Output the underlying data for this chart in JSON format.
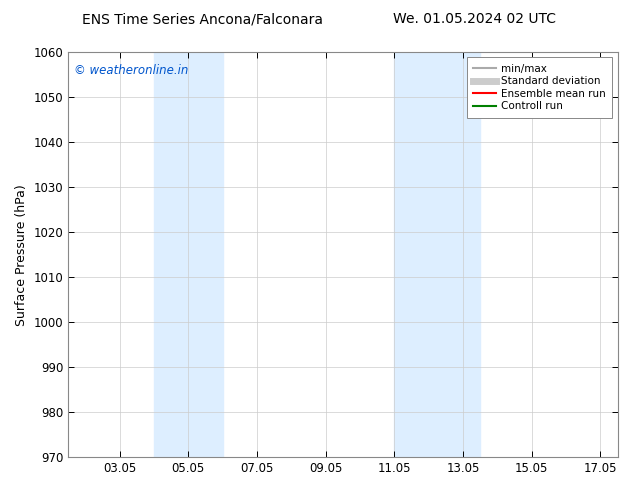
{
  "title_left": "ENS Time Series Ancona/Falconara",
  "title_right": "We. 01.05.2024 02 UTC",
  "ylabel": "Surface Pressure (hPa)",
  "ylim": [
    970,
    1060
  ],
  "yticks": [
    970,
    980,
    990,
    1000,
    1010,
    1020,
    1030,
    1040,
    1050,
    1060
  ],
  "xlim": [
    1.5,
    17.5
  ],
  "xtick_labels": [
    "03.05",
    "05.05",
    "07.05",
    "09.05",
    "11.05",
    "13.05",
    "15.05",
    "17.05"
  ],
  "xtick_positions": [
    3,
    5,
    7,
    9,
    11,
    13,
    15,
    17
  ],
  "shaded_bands": [
    {
      "x_start": 4.0,
      "x_end": 6.0,
      "color": "#ddeeff"
    },
    {
      "x_start": 11.0,
      "x_end": 13.5,
      "color": "#ddeeff"
    }
  ],
  "watermark_text": "© weatheronline.in",
  "watermark_color": "#0055cc",
  "legend_items": [
    {
      "label": "min/max",
      "color": "#aaaaaa",
      "lw": 1.5,
      "ls": "-"
    },
    {
      "label": "Standard deviation",
      "color": "#cccccc",
      "lw": 5,
      "ls": "-"
    },
    {
      "label": "Ensemble mean run",
      "color": "red",
      "lw": 1.5,
      "ls": "-"
    },
    {
      "label": "Controll run",
      "color": "green",
      "lw": 1.5,
      "ls": "-"
    }
  ],
  "background_color": "#ffffff",
  "grid_color": "#cccccc",
  "title_fontsize": 10,
  "label_fontsize": 9,
  "tick_fontsize": 8.5,
  "legend_fontsize": 7.5,
  "watermark_fontsize": 8.5
}
